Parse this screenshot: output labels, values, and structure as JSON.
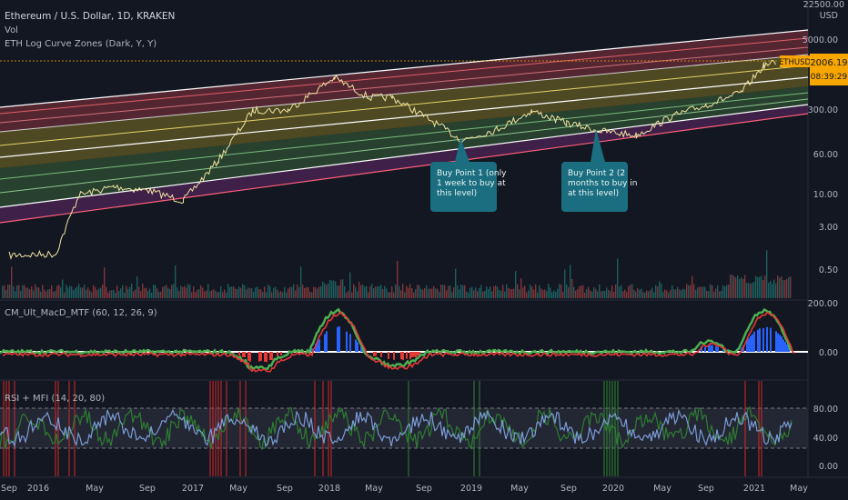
{
  "header": {
    "title": "Ethereum / U.S. Dollar, 1D, KRAKEN",
    "vol_label": "Vol",
    "indicator_label": "ETH Log Curve Zones (Dark, Y, Y)"
  },
  "price_panel": {
    "currency": "USD",
    "top_tick": "22500.00",
    "ticks": [
      "5000.00",
      "300.00",
      "60.00",
      "10.00",
      "3.00",
      "0.50"
    ],
    "symbol_badge": "ETHUSD",
    "last_price": "2006.19",
    "countdown": "08:39:29",
    "colors": {
      "badge": "#f7a600",
      "up": "#26a69a",
      "down": "#ef5350"
    }
  },
  "annotations": [
    {
      "name": "buy-point-1",
      "lines": [
        "Buy Point 1 (only",
        "1 week to buy at",
        "this level)"
      ]
    },
    {
      "name": "buy-point-2",
      "lines": [
        "Buy Point 2 (2",
        "months to buy in",
        "at this level)"
      ]
    }
  ],
  "macd_panel": {
    "title": "CM_Ult_MacD_MTF (60, 12, 26, 9)",
    "ticks": [
      "200.00",
      "0.00"
    ]
  },
  "rsi_panel": {
    "title": "RSI + MFI (14, 20, 80)",
    "ticks": [
      "80.00",
      "40.00",
      "0.00"
    ]
  },
  "time_axis": [
    "Sep",
    "2016",
    "May",
    "Sep",
    "2017",
    "May",
    "Sep",
    "2018",
    "May",
    "Sep",
    "2019",
    "May",
    "Sep",
    "2020",
    "May",
    "Sep",
    "2021",
    "May"
  ],
  "chart_data": {
    "type": "line",
    "scale": "log",
    "series": [
      {
        "x": [
          "2015-09",
          "2016-01",
          "2016-03",
          "2016-06",
          "2016-09",
          "2016-12",
          "2017-03",
          "2017-06",
          "2017-09",
          "2018-01",
          "2018-04",
          "2018-06",
          "2018-09",
          "2018-12",
          "2019-03",
          "2019-06",
          "2019-09",
          "2019-12",
          "2020-03",
          "2020-06",
          "2020-09",
          "2020-12",
          "2021-02",
          "2021-03"
        ],
        "values": [
          0.9,
          0.95,
          10,
          14,
          12,
          8,
          40,
          300,
          300,
          1100,
          500,
          500,
          220,
          90,
          140,
          290,
          180,
          130,
          110,
          230,
          370,
          600,
          1800,
          2006
        ]
      }
    ],
    "ylim": [
      0.2,
      22500
    ]
  }
}
